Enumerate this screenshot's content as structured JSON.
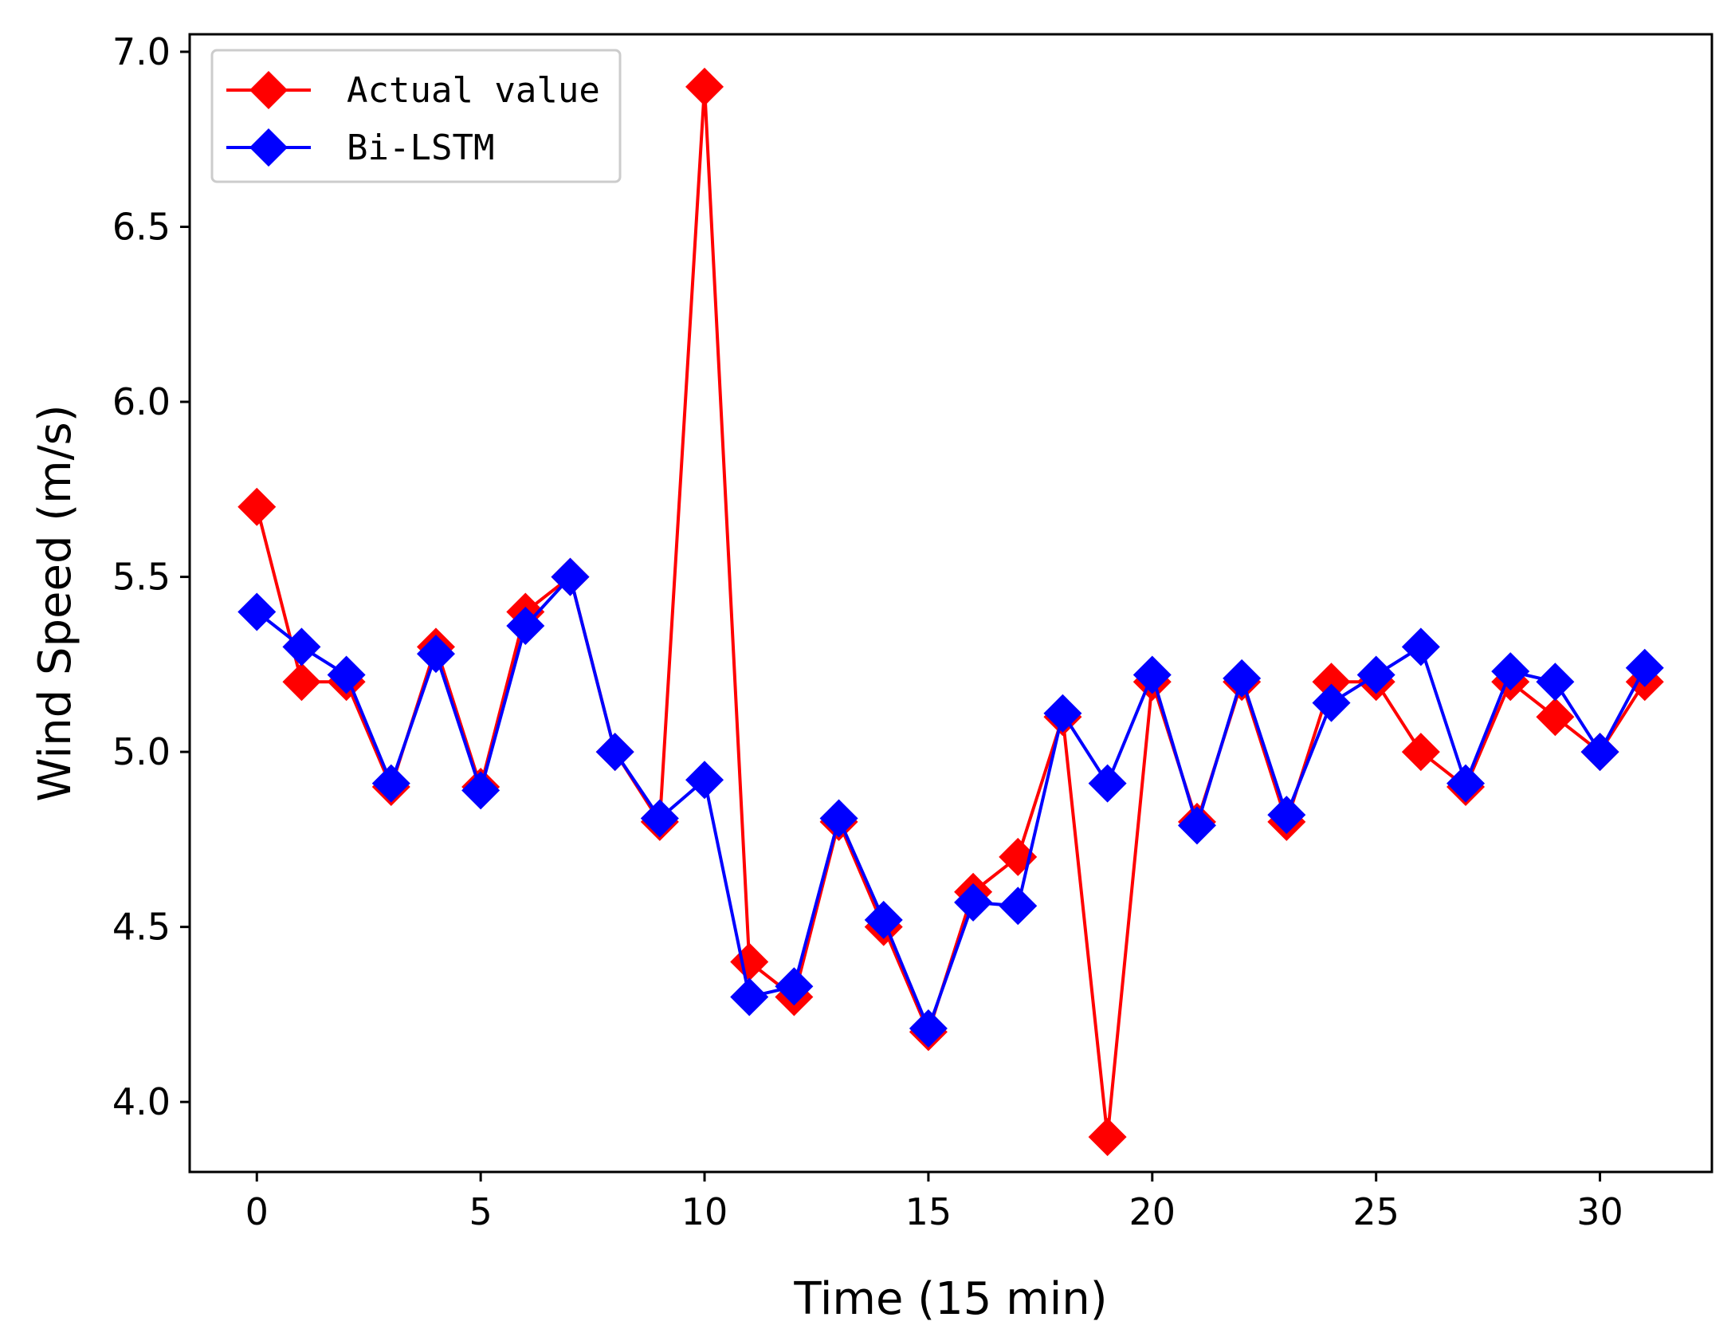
{
  "chart_data": {
    "type": "line",
    "title": "",
    "xlabel": "Time (15 min)",
    "ylabel": "Wind Speed (m/s)",
    "xlim": [
      -1.5,
      32.5
    ],
    "ylim": [
      3.8,
      7.05
    ],
    "xticks": [
      0,
      5,
      10,
      15,
      20,
      25,
      30
    ],
    "xtick_labels": [
      "0",
      "5",
      "10",
      "15",
      "20",
      "25",
      "30"
    ],
    "yticks": [
      4.0,
      4.5,
      5.0,
      5.5,
      6.0,
      6.5,
      7.0
    ],
    "ytick_labels": [
      "4.0",
      "4.5",
      "5.0",
      "5.5",
      "6.0",
      "6.5",
      "7.0"
    ],
    "grid": false,
    "legend_position": "top-left",
    "x": [
      0,
      1,
      2,
      3,
      4,
      5,
      6,
      7,
      8,
      9,
      10,
      11,
      12,
      13,
      14,
      15,
      16,
      17,
      18,
      19,
      20,
      21,
      22,
      23,
      24,
      25,
      26,
      27,
      28,
      29,
      30,
      31
    ],
    "series": [
      {
        "name": "Actual value",
        "color": "#ff0000",
        "marker": "diamond",
        "values": [
          5.7,
          5.2,
          5.2,
          4.9,
          5.3,
          4.9,
          5.4,
          5.5,
          5.0,
          4.8,
          6.9,
          4.4,
          4.3,
          4.8,
          4.5,
          4.2,
          4.6,
          4.7,
          5.1,
          3.9,
          5.2,
          4.8,
          5.2,
          4.8,
          5.2,
          5.2,
          5.0,
          4.9,
          5.2,
          5.1,
          5.0,
          5.2
        ]
      },
      {
        "name": "Bi-LSTM",
        "color": "#0000ff",
        "marker": "diamond",
        "values": [
          5.4,
          5.3,
          5.22,
          4.91,
          5.28,
          4.89,
          5.36,
          5.5,
          5.0,
          4.81,
          4.92,
          4.3,
          4.33,
          4.81,
          4.52,
          4.21,
          4.57,
          4.56,
          5.11,
          4.91,
          5.22,
          4.79,
          5.21,
          4.82,
          5.14,
          5.22,
          5.3,
          4.91,
          5.23,
          5.2,
          5.0,
          5.24
        ]
      }
    ]
  }
}
